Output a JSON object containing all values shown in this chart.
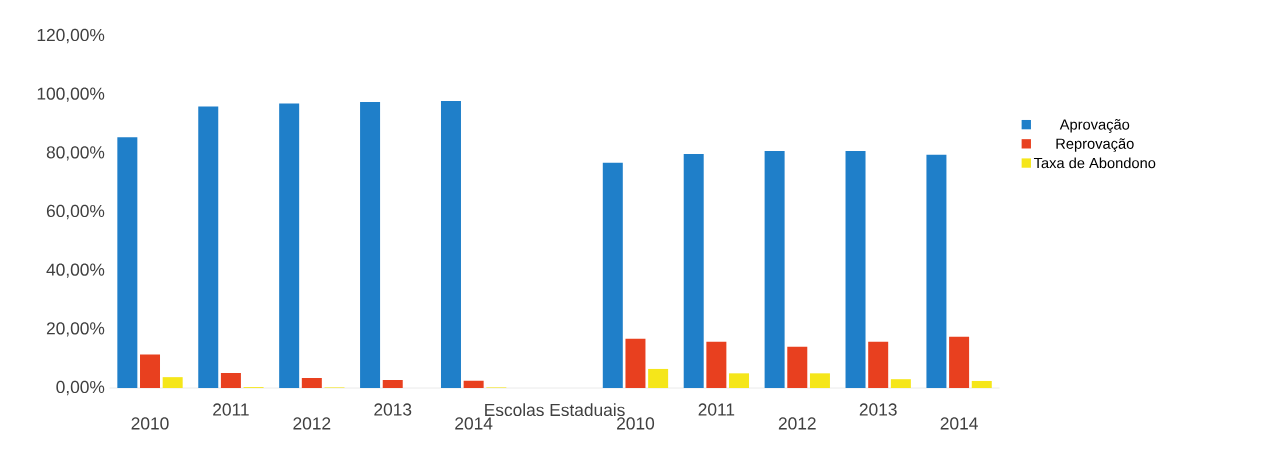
{
  "chart_data": {
    "type": "bar",
    "categories": [
      "2010",
      "2011",
      "2012",
      "2013",
      "2014",
      "Escolas Estaduais",
      "2010",
      "2011",
      "2012",
      "2013",
      "2014"
    ],
    "series": [
      {
        "name": "Aprovação",
        "color": "#1f7fc9",
        "values": [
          85.5,
          96,
          97,
          97.5,
          97.8,
          null,
          76.8,
          79.8,
          80.8,
          80.8,
          79.5
        ]
      },
      {
        "name": "Reprovação",
        "color": "#e8401f",
        "values": [
          11.4,
          5.1,
          3.4,
          2.7,
          2.5,
          null,
          16.8,
          15.8,
          14.1,
          15.8,
          17.5
        ]
      },
      {
        "name": "Taxa de Abondono",
        "color": "#f5e61a",
        "values": [
          3.7,
          0.3,
          0.2,
          null,
          0.2,
          null,
          6.5,
          5,
          5,
          3,
          2.4
        ]
      }
    ],
    "ylim": [
      0,
      120
    ],
    "yticks": [
      {
        "value": 0,
        "label": "0,00%"
      },
      {
        "value": 20,
        "label": "20,00%"
      },
      {
        "value": 40,
        "label": "40,00%"
      },
      {
        "value": 60,
        "label": "60,00%"
      },
      {
        "value": 80,
        "label": "80,00%"
      },
      {
        "value": 100,
        "label": "100,00%"
      },
      {
        "value": 120,
        "label": "120,00%"
      }
    ],
    "legend": "right",
    "grid": false
  }
}
